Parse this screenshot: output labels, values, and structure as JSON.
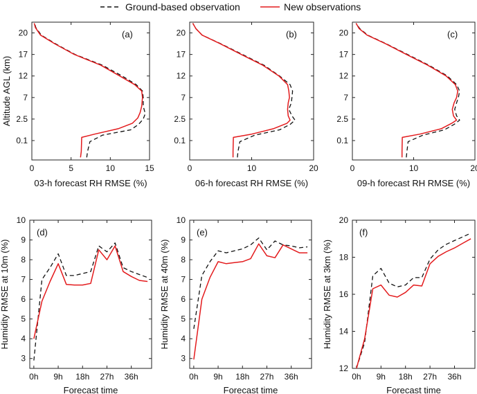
{
  "chart_data": [
    {
      "id": "a",
      "type": "line",
      "panel_label": "(a)",
      "xlabel": "03-h forecast RH RMSE (%)",
      "ylabel": "Altitude AGL (km)",
      "xlim": [
        0,
        15
      ],
      "xticks": [
        0,
        5,
        10,
        15
      ],
      "ytick_labels": [
        "0.1",
        "2.5",
        "7",
        "12",
        "17",
        "20"
      ],
      "ylim_index": [
        0,
        5.5
      ],
      "series": [
        {
          "name": "Ground-based observation",
          "style": "dashed",
          "x": [
            7.0,
            7.1,
            7.4,
            9.0,
            12.6,
            13.6,
            14.2,
            14.45,
            14.2,
            14.2,
            14.1,
            13.3,
            11.5,
            9.0,
            5.5,
            3.0,
            1.2,
            0.5,
            0.35
          ],
          "y": [
            -0.78,
            -0.5,
            -0.05,
            0.25,
            0.5,
            0.75,
            1.0,
            1.25,
            1.6,
            2.0,
            2.3,
            2.6,
            3.0,
            3.5,
            4.0,
            4.5,
            4.9,
            5.25,
            5.45
          ]
        },
        {
          "name": "New observations",
          "style": "solid",
          "x": [
            6.2,
            6.3,
            6.35,
            8.0,
            11.0,
            12.8,
            13.5,
            13.8,
            14.0,
            14.1,
            14.0,
            13.1,
            11.2,
            8.8,
            5.4,
            2.9,
            1.1,
            0.45,
            0.3
          ],
          "y": [
            -0.78,
            -0.5,
            0.15,
            0.3,
            0.55,
            0.8,
            1.05,
            1.3,
            1.6,
            2.0,
            2.3,
            2.6,
            3.0,
            3.5,
            4.0,
            4.5,
            4.9,
            5.25,
            5.45
          ]
        }
      ]
    },
    {
      "id": "b",
      "type": "line",
      "panel_label": "(b)",
      "xlabel": "06-h forecast RH RMSE (%)",
      "ylabel": "",
      "xlim": [
        0,
        20
      ],
      "xticks": [
        0,
        10,
        20
      ],
      "ytick_labels": [
        "0.1",
        "2.5",
        "7",
        "12",
        "17",
        "20"
      ],
      "ylim_index": [
        0,
        5.5
      ],
      "series": [
        {
          "name": "Ground-based observation",
          "style": "dashed",
          "x": [
            7.7,
            7.8,
            8.1,
            10.5,
            14.5,
            16.2,
            17.0,
            16.5,
            16.0,
            16.4,
            16.5,
            16.6,
            16.2,
            14.5,
            12.0,
            8.5,
            5.0,
            2.0,
            1.0,
            0.5
          ],
          "y": [
            -0.78,
            -0.5,
            -0.05,
            0.25,
            0.5,
            0.75,
            0.95,
            1.15,
            1.45,
            1.75,
            2.0,
            2.3,
            2.6,
            3.0,
            3.5,
            4.0,
            4.5,
            4.9,
            5.2,
            5.45
          ]
        },
        {
          "name": "New observations",
          "style": "solid",
          "x": [
            7.0,
            7.0,
            7.05,
            10.0,
            13.5,
            15.7,
            16.2,
            15.9,
            15.8,
            15.9,
            16.1,
            16.0,
            15.8,
            14.4,
            11.8,
            8.3,
            4.9,
            2.0,
            1.0,
            0.5
          ],
          "y": [
            -0.78,
            -0.5,
            0.15,
            0.3,
            0.55,
            0.8,
            0.95,
            1.15,
            1.45,
            1.75,
            2.0,
            2.3,
            2.6,
            3.0,
            3.5,
            4.0,
            4.5,
            4.9,
            5.2,
            5.45
          ]
        }
      ]
    },
    {
      "id": "c",
      "type": "line",
      "panel_label": "(c)",
      "xlabel": "09-h forecast RH RMSE (%)",
      "ylabel": "",
      "xlim": [
        0,
        20
      ],
      "xticks": [
        0,
        10,
        20
      ],
      "ytick_labels": [
        "0.1",
        "2.5",
        "7",
        "12",
        "17",
        "20"
      ],
      "ylim_index": [
        0,
        5.5
      ],
      "series": [
        {
          "name": "Ground-based observation",
          "style": "dashed",
          "x": [
            8.8,
            8.9,
            9.1,
            11.5,
            15.0,
            16.6,
            17.5,
            17.0,
            16.7,
            17.0,
            17.3,
            17.5,
            17.0,
            15.5,
            12.5,
            9.0,
            5.5,
            2.5,
            1.2,
            0.6
          ],
          "y": [
            -0.78,
            -0.5,
            -0.05,
            0.25,
            0.5,
            0.75,
            0.95,
            1.15,
            1.45,
            1.75,
            2.0,
            2.3,
            2.6,
            3.0,
            3.5,
            4.0,
            4.5,
            4.9,
            5.2,
            5.45
          ]
        },
        {
          "name": "New observations",
          "style": "solid",
          "x": [
            8.1,
            8.1,
            8.15,
            11.0,
            14.5,
            16.2,
            17.0,
            16.5,
            16.3,
            16.6,
            17.0,
            17.2,
            16.8,
            15.3,
            12.3,
            8.8,
            5.4,
            2.4,
            1.1,
            0.6
          ],
          "y": [
            -0.78,
            -0.5,
            0.15,
            0.3,
            0.55,
            0.8,
            0.95,
            1.15,
            1.45,
            1.75,
            2.0,
            2.3,
            2.6,
            3.0,
            3.5,
            4.0,
            4.5,
            4.9,
            5.2,
            5.45
          ]
        }
      ]
    },
    {
      "id": "d",
      "type": "line",
      "panel_label": "(d)",
      "xlabel": "Forecast time",
      "ylabel": "Humidity RMSE at 10m (%)",
      "xlim": [
        -1.5,
        43.5
      ],
      "xticks": [
        0,
        9,
        18,
        27,
        36
      ],
      "xtick_labels": [
        "0h",
        "9h",
        "18h",
        "27h",
        "36h"
      ],
      "ylim": [
        2.5,
        10
      ],
      "yticks": [
        3,
        4,
        5,
        6,
        7,
        8,
        9,
        10
      ],
      "series": [
        {
          "name": "Ground-based observation",
          "style": "dashed",
          "x": [
            0,
            3,
            6,
            9,
            12,
            15,
            18,
            21,
            24,
            27,
            30,
            33,
            36,
            39,
            42
          ],
          "y": [
            2.9,
            7.0,
            7.6,
            8.3,
            7.2,
            7.2,
            7.3,
            7.4,
            8.7,
            8.4,
            8.85,
            7.6,
            7.4,
            7.25,
            7.1
          ]
        },
        {
          "name": "New observations",
          "style": "solid",
          "x": [
            0,
            3,
            6,
            9,
            12,
            15,
            18,
            21,
            24,
            27,
            30,
            33,
            36,
            39,
            42
          ],
          "y": [
            4.0,
            5.9,
            6.9,
            7.8,
            6.75,
            6.72,
            6.72,
            6.8,
            8.5,
            8.0,
            8.7,
            7.4,
            7.15,
            6.95,
            6.9
          ]
        }
      ]
    },
    {
      "id": "e",
      "type": "line",
      "panel_label": "(e)",
      "xlabel": "Forecast time",
      "ylabel": "Humidity RMSE at 40m (%)",
      "xlim": [
        -1.5,
        43.5
      ],
      "xticks": [
        0,
        9,
        18,
        27,
        36
      ],
      "xtick_labels": [
        "0h",
        "9h",
        "18h",
        "27h",
        "36h"
      ],
      "ylim": [
        2.5,
        10
      ],
      "yticks": [
        3,
        4,
        5,
        6,
        7,
        8,
        9,
        10
      ],
      "series": [
        {
          "name": "Ground-based observation",
          "style": "dashed",
          "x": [
            0,
            3,
            6,
            9,
            12,
            15,
            18,
            21,
            24,
            27,
            30,
            33,
            36,
            39,
            42
          ],
          "y": [
            4.5,
            7.2,
            7.9,
            8.45,
            8.35,
            8.45,
            8.55,
            8.75,
            9.1,
            8.5,
            8.95,
            8.75,
            8.7,
            8.6,
            8.65
          ]
        },
        {
          "name": "New observations",
          "style": "solid",
          "x": [
            0,
            3,
            6,
            9,
            12,
            15,
            18,
            21,
            24,
            27,
            30,
            33,
            36,
            39,
            42
          ],
          "y": [
            2.95,
            6.0,
            7.1,
            7.9,
            7.8,
            7.85,
            7.9,
            8.05,
            8.8,
            8.2,
            8.1,
            8.75,
            8.55,
            8.35,
            8.35
          ]
        }
      ]
    },
    {
      "id": "f",
      "type": "line",
      "panel_label": "(f)",
      "xlabel": "Forecast time",
      "ylabel": "Humidity RMSE at 3km (%)",
      "xlim": [
        -1.5,
        43.5
      ],
      "xticks": [
        0,
        9,
        18,
        27,
        36
      ],
      "xtick_labels": [
        "0h",
        "9h",
        "18h",
        "27h",
        "36h"
      ],
      "ylim": [
        12,
        20
      ],
      "yticks": [
        12,
        14,
        16,
        18,
        20
      ],
      "series": [
        {
          "name": "Ground-based observation",
          "style": "dashed",
          "x": [
            0,
            3,
            6,
            9,
            12,
            15,
            18,
            21,
            24,
            27,
            30,
            33,
            36,
            39,
            42
          ],
          "y": [
            12.0,
            13.4,
            17.0,
            17.4,
            16.6,
            16.4,
            16.5,
            16.9,
            16.9,
            17.9,
            18.4,
            18.7,
            18.9,
            19.1,
            19.3
          ]
        },
        {
          "name": "New observations",
          "style": "solid",
          "x": [
            0,
            3,
            6,
            9,
            12,
            15,
            18,
            21,
            24,
            27,
            30,
            33,
            36,
            39,
            42
          ],
          "y": [
            12.0,
            13.6,
            16.3,
            16.5,
            15.95,
            15.85,
            16.1,
            16.5,
            16.45,
            17.65,
            18.05,
            18.3,
            18.5,
            18.75,
            19.0
          ]
        }
      ]
    }
  ],
  "legend": {
    "entries": [
      {
        "label": "Ground-based observation",
        "style": "dashed",
        "color": "#111111"
      },
      {
        "label": "New observations",
        "style": "solid",
        "color": "#e31a1c"
      }
    ]
  },
  "colors": {
    "observation": "#111111",
    "new": "#e31a1c",
    "axis": "#222222",
    "grid": "#dddddd"
  }
}
